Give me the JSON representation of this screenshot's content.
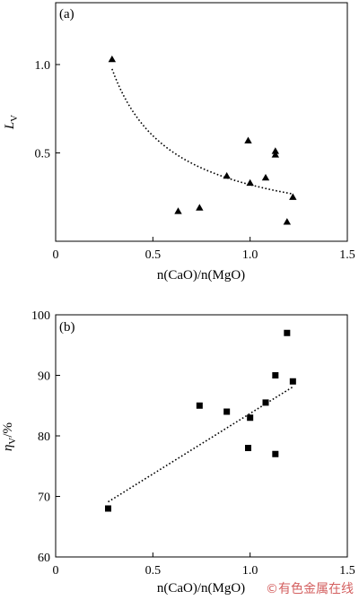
{
  "chart_data": [
    {
      "type": "scatter",
      "panel_label": "(a)",
      "xlabel": "n(CaO)/n(MgO)",
      "ylabel": "L",
      "ylabel_sub": "V",
      "xlim": [
        0,
        1.5
      ],
      "ylim": [
        0,
        1.35
      ],
      "xticks": [
        "0",
        "0.5",
        "1.0",
        "1.5"
      ],
      "yticks": [
        "0.5",
        "1.0"
      ],
      "marker": "triangle",
      "points": [
        {
          "x": 0.29,
          "y": 1.03
        },
        {
          "x": 0.63,
          "y": 0.17
        },
        {
          "x": 0.74,
          "y": 0.19
        },
        {
          "x": 0.88,
          "y": 0.37
        },
        {
          "x": 0.99,
          "y": 0.57
        },
        {
          "x": 1.0,
          "y": 0.33
        },
        {
          "x": 1.08,
          "y": 0.36
        },
        {
          "x": 1.13,
          "y": 0.51
        },
        {
          "x": 1.13,
          "y": 0.49
        },
        {
          "x": 1.19,
          "y": 0.11
        },
        {
          "x": 1.22,
          "y": 0.25
        }
      ],
      "trendline": {
        "type": "power",
        "a": 0.32,
        "b": -0.9,
        "x_range": [
          0.29,
          1.22
        ]
      }
    },
    {
      "type": "scatter",
      "panel_label": "(b)",
      "xlabel": "n(CaO)/n(MgO)",
      "ylabel": "η",
      "ylabel_sub": "V",
      "ylabel_suffix": "/%",
      "xlim": [
        0,
        1.5
      ],
      "ylim": [
        60,
        100
      ],
      "xticks": [
        "0",
        "0.5",
        "1.0",
        "1.5"
      ],
      "yticks": [
        "60",
        "70",
        "80",
        "90",
        "100"
      ],
      "marker": "square",
      "points": [
        {
          "x": 0.27,
          "y": 68
        },
        {
          "x": 0.74,
          "y": 85
        },
        {
          "x": 0.88,
          "y": 84
        },
        {
          "x": 0.99,
          "y": 78
        },
        {
          "x": 1.0,
          "y": 83
        },
        {
          "x": 1.08,
          "y": 85.5
        },
        {
          "x": 1.13,
          "y": 90
        },
        {
          "x": 1.13,
          "y": 77
        },
        {
          "x": 1.19,
          "y": 97
        },
        {
          "x": 1.22,
          "y": 89
        }
      ],
      "trendline": {
        "type": "linear",
        "slope": 20.0,
        "intercept": 63.7,
        "x_range": [
          0.27,
          1.22
        ]
      }
    }
  ],
  "watermark": "©有色金属在线"
}
